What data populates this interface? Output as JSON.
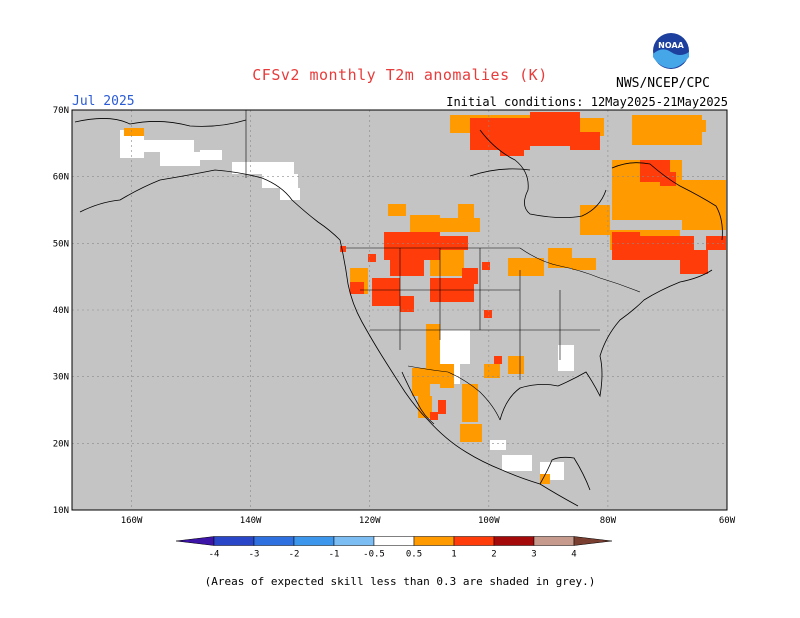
{
  "header": {
    "title": "CFSv2 monthly T2m anomalies (K)",
    "month": "Jul 2025",
    "initial_conditions": "Initial conditions: 12May2025-21May2025",
    "org": "NWS/NCEP/CPC",
    "logo_text": "NOAA"
  },
  "map": {
    "region": "North America",
    "lon_range": [
      -170,
      -60
    ],
    "lat_range": [
      10,
      70
    ],
    "lat_ticks": [
      {
        "value": 70,
        "label": "70N"
      },
      {
        "value": 60,
        "label": "60N"
      },
      {
        "value": 50,
        "label": "50N"
      },
      {
        "value": 40,
        "label": "40N"
      },
      {
        "value": 30,
        "label": "30N"
      },
      {
        "value": 20,
        "label": "20N"
      },
      {
        "value": 10,
        "label": "10N"
      }
    ],
    "lon_ticks": [
      {
        "value": -160,
        "label": "160W"
      },
      {
        "value": -140,
        "label": "140W"
      },
      {
        "value": -120,
        "label": "120W"
      },
      {
        "value": -100,
        "label": "100W"
      },
      {
        "value": -80,
        "label": "80W"
      },
      {
        "value": -60,
        "label": "60W"
      }
    ],
    "grey_color": "#c4c4c4"
  },
  "colorbar": {
    "bins": [
      {
        "color": "#3c14a8"
      },
      {
        "color": "#2a46c8"
      },
      {
        "color": "#2f70e0"
      },
      {
        "color": "#3c97ec"
      },
      {
        "color": "#7cbef4"
      },
      {
        "color": "#ffffff"
      },
      {
        "color": "#ff9a00"
      },
      {
        "color": "#ff3c0a"
      },
      {
        "color": "#a50a0a"
      },
      {
        "color": "#c79a8e"
      },
      {
        "color": "#7a3f30"
      }
    ],
    "labels": [
      "-4",
      "-3",
      "-2",
      "-1",
      "-0.5",
      "0.5",
      "1",
      "2",
      "3",
      "4"
    ]
  },
  "footnote": "(Areas of expected skill less than 0.3 are shaded in grey.)"
}
